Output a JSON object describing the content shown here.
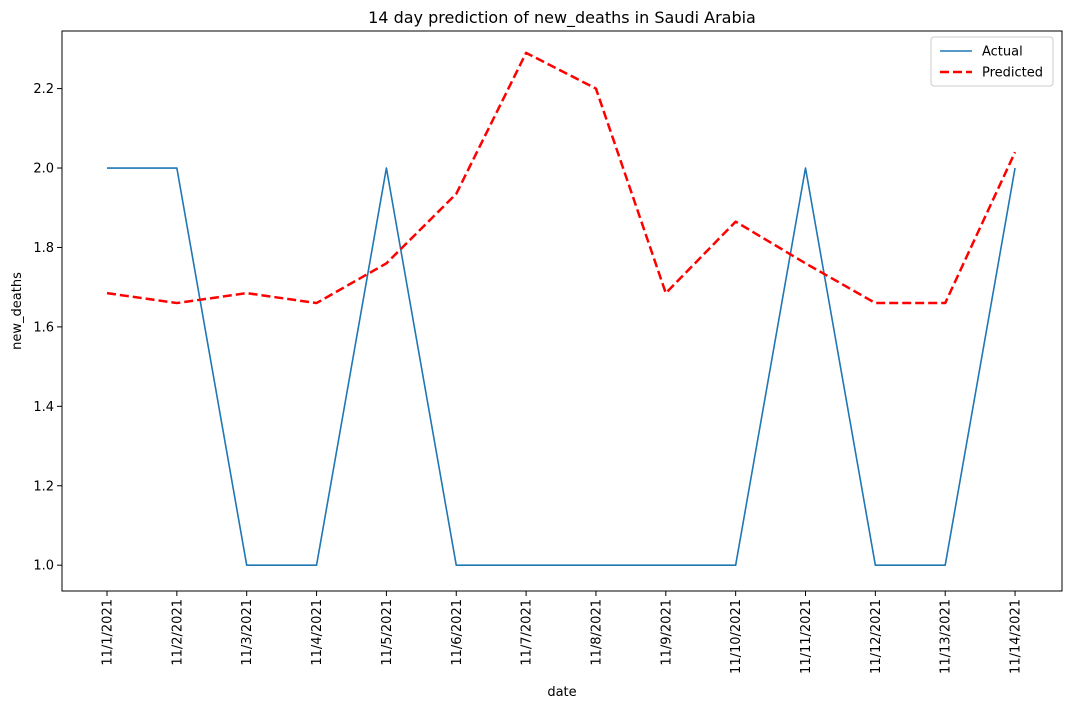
{
  "chart_data": {
    "type": "line",
    "title": "14 day prediction of new_deaths in Saudi Arabia",
    "xlabel": "date",
    "ylabel": "new_deaths",
    "categories": [
      "11/1/2021",
      "11/2/2021",
      "11/3/2021",
      "11/4/2021",
      "11/5/2021",
      "11/6/2021",
      "11/7/2021",
      "11/8/2021",
      "11/9/2021",
      "11/10/2021",
      "11/11/2021",
      "11/12/2021",
      "11/13/2021",
      "11/14/2021"
    ],
    "yticks": [
      "1.0",
      "1.2",
      "1.4",
      "1.6",
      "1.8",
      "2.0",
      "2.2"
    ],
    "ylim": [
      0.935,
      2.345
    ],
    "grid": false,
    "legend_position": "top-right",
    "series": [
      {
        "name": "Actual",
        "color": "#1f77b4",
        "style": "solid",
        "values": [
          2,
          2,
          1,
          1,
          2,
          1,
          1,
          1,
          1,
          1,
          2,
          1,
          1,
          2
        ]
      },
      {
        "name": "Predicted",
        "color": "#ff0000",
        "style": "dashed",
        "values": [
          1.685,
          1.66,
          1.685,
          1.66,
          1.76,
          1.935,
          2.29,
          2.2,
          1.685,
          1.865,
          1.76,
          1.66,
          1.66,
          2.04
        ]
      }
    ]
  }
}
